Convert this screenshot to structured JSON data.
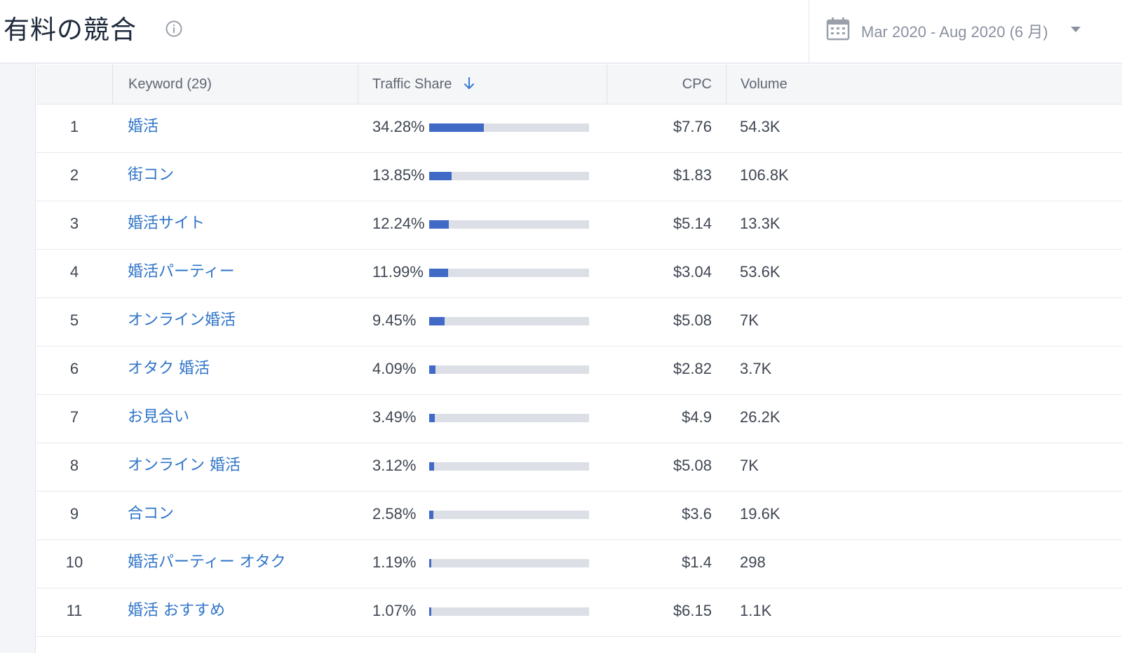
{
  "header": {
    "title": "有料の競合",
    "date_range": "Mar 2020 - Aug 2020 (6 月)"
  },
  "table": {
    "columns": {
      "keyword": "Keyword (29)",
      "traffic_share": "Traffic Share",
      "cpc": "CPC",
      "volume": "Volume"
    },
    "rows": [
      {
        "num": "1",
        "keyword": "婚活",
        "share": "34.28%",
        "share_value": 34.28,
        "cpc": "$7.76",
        "volume": "54.3K"
      },
      {
        "num": "2",
        "keyword": "街コン",
        "share": "13.85%",
        "share_value": 13.85,
        "cpc": "$1.83",
        "volume": "106.8K"
      },
      {
        "num": "3",
        "keyword": "婚活サイト",
        "share": "12.24%",
        "share_value": 12.24,
        "cpc": "$5.14",
        "volume": "13.3K"
      },
      {
        "num": "4",
        "keyword": "婚活パーティー",
        "share": "11.99%",
        "share_value": 11.99,
        "cpc": "$3.04",
        "volume": "53.6K"
      },
      {
        "num": "5",
        "keyword": "オンライン婚活",
        "share": "9.45%",
        "share_value": 9.45,
        "cpc": "$5.08",
        "volume": "7K"
      },
      {
        "num": "6",
        "keyword": "オタク 婚活",
        "share": "4.09%",
        "share_value": 4.09,
        "cpc": "$2.82",
        "volume": "3.7K"
      },
      {
        "num": "7",
        "keyword": "お見合い",
        "share": "3.49%",
        "share_value": 3.49,
        "cpc": "$4.9",
        "volume": "26.2K"
      },
      {
        "num": "8",
        "keyword": "オンライン 婚活",
        "share": "3.12%",
        "share_value": 3.12,
        "cpc": "$5.08",
        "volume": "7K"
      },
      {
        "num": "9",
        "keyword": "合コン",
        "share": "2.58%",
        "share_value": 2.58,
        "cpc": "$3.6",
        "volume": "19.6K"
      },
      {
        "num": "10",
        "keyword": "婚活パーティー オタク",
        "share": "1.19%",
        "share_value": 1.19,
        "cpc": "$1.4",
        "volume": "298"
      },
      {
        "num": "11",
        "keyword": "婚活 おすすめ",
        "share": "1.07%",
        "share_value": 1.07,
        "cpc": "$6.15",
        "volume": "1.1K"
      }
    ]
  },
  "colors": {
    "bar_fill": "#4169c6",
    "bar_track": "#dcdfe5",
    "keyword_link": "#2f74c9"
  }
}
